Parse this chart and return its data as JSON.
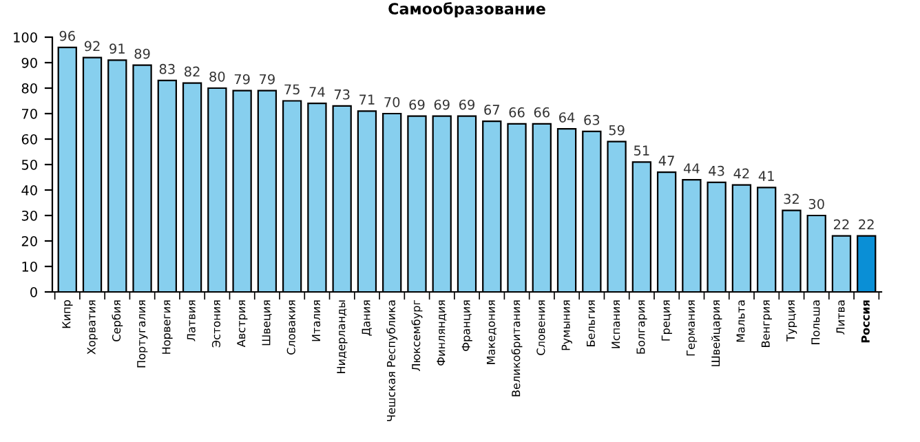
{
  "chart_data": {
    "type": "bar",
    "title": "Самообразование",
    "categories": [
      "Кипр",
      "Хорватия",
      "Сербия",
      "Португалия",
      "Норвегия",
      "Латвия",
      "Эстония",
      "Австрия",
      "Швеция",
      "Словакия",
      "Италия",
      "Нидерланды",
      "Дания",
      "Чешская Республика",
      "Люксембург",
      "Финляндия",
      "Франция",
      "Македония",
      "Великобритания",
      "Словения",
      "Румыния",
      "Бельгия",
      "Испания",
      "Болгария",
      "Греция",
      "Германия",
      "Швейцария",
      "Мальта",
      "Венгрия",
      "Турция",
      "Польша",
      "Литва",
      "Россия"
    ],
    "values": [
      96,
      92,
      91,
      89,
      83,
      82,
      80,
      79,
      79,
      75,
      74,
      73,
      71,
      70,
      69,
      69,
      69,
      67,
      66,
      66,
      64,
      63,
      59,
      51,
      47,
      44,
      43,
      42,
      41,
      32,
      30,
      22,
      22
    ],
    "colors": [
      "#87cfee",
      "#87cfee",
      "#87cfee",
      "#87cfee",
      "#87cfee",
      "#87cfee",
      "#87cfee",
      "#87cfee",
      "#87cfee",
      "#87cfee",
      "#87cfee",
      "#87cfee",
      "#87cfee",
      "#87cfee",
      "#87cfee",
      "#87cfee",
      "#87cfee",
      "#87cfee",
      "#87cfee",
      "#87cfee",
      "#87cfee",
      "#87cfee",
      "#87cfee",
      "#87cfee",
      "#87cfee",
      "#87cfee",
      "#87cfee",
      "#87cfee",
      "#87cfee",
      "#87cfee",
      "#87cfee",
      "#87cfee",
      "#0a8fd6"
    ],
    "ylim": [
      0,
      100
    ],
    "yticks": [
      0,
      10,
      20,
      30,
      40,
      50,
      60,
      70,
      80,
      90,
      100
    ],
    "data_labels": true,
    "grid": false
  }
}
